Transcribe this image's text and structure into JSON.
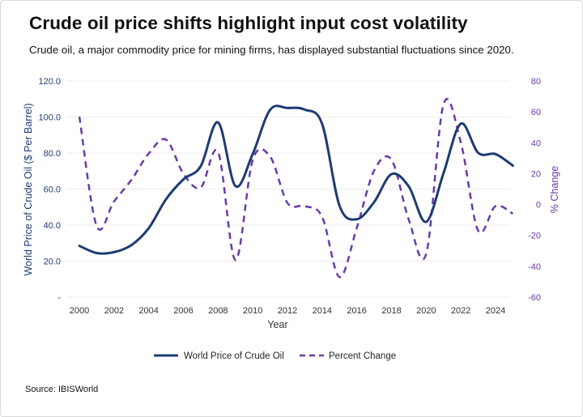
{
  "header": {
    "title": "Crude oil price shifts highlight input cost volatility",
    "subtitle": "Crude oil, a major commodity price for mining firms, has displayed substantial fluctuations since 2020."
  },
  "footer": {
    "source": "Source: IBISWorld"
  },
  "colors": {
    "price": "#1f3b73",
    "change": "#6a3aa8",
    "grid": "#ebebeb"
  },
  "chart_data": {
    "type": "line",
    "xlabel": "Year",
    "ylabel_left": "World Price of Crude Oil ($ Per Barrel)",
    "ylabel_right": "% Change",
    "x_ticks": [
      "2000",
      "2002",
      "2004",
      "2006",
      "2008",
      "2010",
      "2012",
      "2014",
      "2016",
      "2018",
      "2020",
      "2022",
      "2024"
    ],
    "y_left_ticks": [
      "-",
      "20.0",
      "40.0",
      "60.0",
      "80.0",
      "100.0",
      "120.0"
    ],
    "y_right_ticks": [
      "-60",
      "-40",
      "-20",
      "0",
      "20",
      "40",
      "60",
      "80"
    ],
    "ylim_left": [
      0,
      120
    ],
    "ylim_right": [
      -60,
      80
    ],
    "grid": true,
    "legend_position": "bottom",
    "x": [
      2000,
      2001,
      2002,
      2003,
      2004,
      2005,
      2006,
      2007,
      2008,
      2009,
      2010,
      2011,
      2012,
      2013,
      2014,
      2015,
      2016,
      2017,
      2018,
      2019,
      2020,
      2021,
      2022,
      2023,
      2024,
      2025
    ],
    "series": [
      {
        "name": "World Price of Crude Oil",
        "axis": "left",
        "style": "solid",
        "values": [
          28.5,
          24.5,
          25.0,
          28.9,
          38.3,
          54.4,
          65.4,
          72.7,
          97.0,
          61.7,
          79.6,
          104.0,
          105.0,
          104.1,
          96.2,
          50.8,
          43.3,
          52.8,
          68.3,
          61.4,
          41.8,
          68.9,
          96.3,
          80.1,
          79.4,
          73.0
        ]
      },
      {
        "name": "Percent Change",
        "axis": "right",
        "style": "dashed",
        "values": [
          57.0,
          -14.0,
          2.0,
          16.0,
          33.0,
          42.0,
          20.0,
          11.0,
          34.0,
          -36.0,
          29.0,
          31.0,
          1.0,
          -1.0,
          -8.0,
          -47.0,
          -15.0,
          22.0,
          29.0,
          -10.0,
          -32.0,
          65.0,
          40.0,
          -17.0,
          -1.0,
          -6.0
        ]
      }
    ]
  }
}
